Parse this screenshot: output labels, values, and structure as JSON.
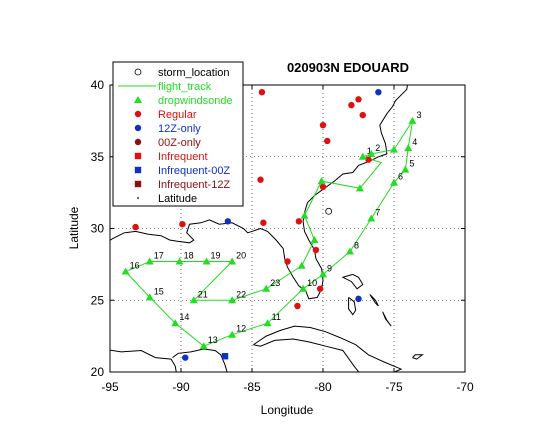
{
  "title": "020903N EDOUARD",
  "colors": {
    "track": "#22dd22",
    "regular": "#e01010",
    "only12z": "#1030c0",
    "only00z": "#8b1010",
    "infrequent": "#e01010",
    "infrequent00z": "#1030c0",
    "infrequent12z": "#8b1010",
    "coast": "#000000",
    "grid": "#000000"
  },
  "chart_data": {
    "type": "scatter",
    "title": "020903N EDOUARD",
    "xlabel": "Longitude",
    "ylabel": "Latitude",
    "xlim": [
      -95,
      -70
    ],
    "ylim": [
      20,
      40
    ],
    "xticks": [
      -95,
      -90,
      -85,
      -80,
      -75,
      -70
    ],
    "yticks": [
      20,
      25,
      30,
      35,
      40
    ],
    "grid": true,
    "legend_position": "top-left",
    "legend": [
      {
        "label": "storm_location",
        "marker": "open-circle",
        "color": "#000000"
      },
      {
        "label": "flight_track",
        "marker": "line",
        "color": "#22dd22"
      },
      {
        "label": "dropwindsonde",
        "marker": "triangle",
        "color": "#22dd22"
      },
      {
        "label": "Regular",
        "marker": "circle",
        "color": "#e01010"
      },
      {
        "label": "12Z-only",
        "marker": "circle",
        "color": "#1030c0"
      },
      {
        "label": "00Z-only",
        "marker": "circle",
        "color": "#8b1010"
      },
      {
        "label": "Infrequent",
        "marker": "square",
        "color": "#e01010"
      },
      {
        "label": "Infrequent-00Z",
        "marker": "square",
        "color": "#1030c0"
      },
      {
        "label": "Infrequent-12Z",
        "marker": "square",
        "color": "#8b1010"
      },
      {
        "label": "Latitude",
        "marker": "dot",
        "color": "#000000"
      }
    ],
    "storm_location": [
      [
        -79.6,
        31.2
      ]
    ],
    "flight_track": [
      [
        -77.2,
        35.0
      ],
      [
        -76.6,
        35.2
      ],
      [
        -75.0,
        35.5
      ],
      [
        -73.7,
        37.5
      ],
      [
        -74.0,
        35.6
      ],
      [
        -74.2,
        34.1
      ],
      [
        -75.0,
        33.2
      ],
      [
        -76.6,
        30.7
      ],
      [
        -78.1,
        28.4
      ],
      [
        -80.0,
        26.8
      ],
      [
        -81.4,
        25.8
      ],
      [
        -83.9,
        23.4
      ],
      [
        -86.4,
        22.6
      ],
      [
        -88.4,
        21.8
      ],
      [
        -90.4,
        23.4
      ],
      [
        -92.2,
        25.2
      ],
      [
        -93.9,
        27.0
      ],
      [
        -92.2,
        27.7
      ],
      [
        -90.1,
        27.7
      ],
      [
        -88.2,
        27.7
      ],
      [
        -86.4,
        27.7
      ],
      [
        -89.1,
        25.0
      ],
      [
        -86.4,
        25.0
      ],
      [
        -84.0,
        25.8
      ],
      [
        -81.5,
        27.4
      ],
      [
        -80.6,
        29.2
      ],
      [
        -81.3,
        30.9
      ],
      [
        -80.1,
        33.3
      ],
      [
        -77.4,
        32.8
      ],
      [
        -75.9,
        34.6
      ],
      [
        -77.2,
        35.0
      ]
    ],
    "dropwindsondes": [
      {
        "lon": -77.2,
        "lat": 35.0,
        "label": "1"
      },
      {
        "lon": -76.6,
        "lat": 35.2,
        "label": "2"
      },
      {
        "lon": -73.7,
        "lat": 37.5,
        "label": "3"
      },
      {
        "lon": -74.0,
        "lat": 35.6,
        "label": "4"
      },
      {
        "lon": -74.2,
        "lat": 34.1,
        "label": "5"
      },
      {
        "lon": -75.0,
        "lat": 33.2,
        "label": "6"
      },
      {
        "lon": -76.6,
        "lat": 30.7,
        "label": "7"
      },
      {
        "lon": -78.1,
        "lat": 28.4,
        "label": "8"
      },
      {
        "lon": -80.0,
        "lat": 26.8,
        "label": "9"
      },
      {
        "lon": -81.4,
        "lat": 25.8,
        "label": "10"
      },
      {
        "lon": -83.9,
        "lat": 23.4,
        "label": "11"
      },
      {
        "lon": -86.4,
        "lat": 22.6,
        "label": "12"
      },
      {
        "lon": -88.4,
        "lat": 21.8,
        "label": "13"
      },
      {
        "lon": -90.4,
        "lat": 23.4,
        "label": "14"
      },
      {
        "lon": -92.2,
        "lat": 25.2,
        "label": "15"
      },
      {
        "lon": -93.9,
        "lat": 27.0,
        "label": "16"
      },
      {
        "lon": -92.2,
        "lat": 27.7,
        "label": "17"
      },
      {
        "lon": -90.1,
        "lat": 27.7,
        "label": "18"
      },
      {
        "lon": -88.2,
        "lat": 27.7,
        "label": "19"
      },
      {
        "lon": -86.4,
        "lat": 27.7,
        "label": "20"
      },
      {
        "lon": -89.1,
        "lat": 25.0,
        "label": "21"
      },
      {
        "lon": -86.4,
        "lat": 25.0,
        "label": "22"
      },
      {
        "lon": -84.0,
        "lat": 25.8,
        "label": "23"
      },
      {
        "lon": -81.5,
        "lat": 27.4,
        "label": ""
      },
      {
        "lon": -80.6,
        "lat": 29.2,
        "label": ""
      },
      {
        "lon": -81.3,
        "lat": 30.9,
        "label": ""
      },
      {
        "lon": -80.1,
        "lat": 33.3,
        "label": ""
      },
      {
        "lon": -77.4,
        "lat": 32.8,
        "label": ""
      },
      {
        "lon": -75.0,
        "lat": 35.5,
        "label": ""
      }
    ],
    "regular_stations": [
      [
        -84.3,
        39.5
      ],
      [
        -77.5,
        39.0
      ],
      [
        -80.0,
        37.2
      ],
      [
        -77.2,
        37.9
      ],
      [
        -79.7,
        36.1
      ],
      [
        -84.4,
        33.4
      ],
      [
        -80.0,
        32.9
      ],
      [
        -76.8,
        34.8
      ],
      [
        -84.2,
        30.4
      ],
      [
        -81.7,
        30.5
      ],
      [
        -89.9,
        30.3
      ],
      [
        -93.2,
        30.1
      ],
      [
        -82.5,
        27.7
      ],
      [
        -80.5,
        28.5
      ],
      [
        -80.2,
        25.8
      ],
      [
        -81.8,
        24.6
      ],
      [
        -78.0,
        38.6
      ]
    ],
    "only12z_stations": [
      [
        -76.1,
        39.5
      ],
      [
        -86.7,
        30.5
      ],
      [
        -77.5,
        25.1
      ],
      [
        -89.7,
        21.0
      ]
    ],
    "only00z_stations": [],
    "infrequent_stations": [],
    "infrequent00z_stations": [
      [
        -86.9,
        21.1
      ]
    ],
    "infrequent12z_stations": [],
    "coastlines": [
      [
        [
          -70.0,
          41.5
        ],
        [
          -71.0,
          41.4
        ],
        [
          -72.8,
          41.1
        ],
        [
          -73.8,
          40.7
        ],
        [
          -74.0,
          40.4
        ],
        [
          -74.1,
          39.7
        ],
        [
          -74.9,
          38.9
        ],
        [
          -75.1,
          38.5
        ],
        [
          -75.5,
          38.0
        ],
        [
          -76.0,
          37.2
        ],
        [
          -75.9,
          36.7
        ],
        [
          -75.6,
          35.9
        ],
        [
          -75.5,
          35.2
        ],
        [
          -76.1,
          35.0
        ],
        [
          -76.7,
          34.7
        ],
        [
          -77.5,
          34.4
        ],
        [
          -77.9,
          33.9
        ],
        [
          -78.6,
          33.8
        ],
        [
          -79.2,
          33.3
        ],
        [
          -79.9,
          32.8
        ],
        [
          -80.6,
          32.3
        ],
        [
          -81.1,
          31.8
        ],
        [
          -81.3,
          31.1
        ],
        [
          -81.4,
          30.5
        ],
        [
          -81.3,
          29.8
        ],
        [
          -81.0,
          29.2
        ],
        [
          -80.6,
          28.5
        ],
        [
          -80.5,
          27.9
        ],
        [
          -80.1,
          27.2
        ],
        [
          -80.0,
          26.4
        ],
        [
          -80.1,
          25.8
        ],
        [
          -80.4,
          25.2
        ],
        [
          -81.0,
          25.1
        ],
        [
          -81.2,
          25.6
        ],
        [
          -81.7,
          26.0
        ],
        [
          -82.1,
          26.6
        ],
        [
          -82.5,
          27.3
        ],
        [
          -82.7,
          27.9
        ],
        [
          -82.8,
          28.6
        ],
        [
          -83.3,
          29.2
        ],
        [
          -83.9,
          29.8
        ],
        [
          -84.4,
          30.0
        ],
        [
          -85.3,
          29.7
        ],
        [
          -85.6,
          30.0
        ],
        [
          -86.4,
          30.4
        ],
        [
          -87.3,
          30.3
        ],
        [
          -88.0,
          30.6
        ],
        [
          -88.6,
          30.4
        ],
        [
          -89.4,
          30.3
        ],
        [
          -89.6,
          29.7
        ],
        [
          -89.1,
          29.2
        ],
        [
          -89.4,
          29.0
        ],
        [
          -90.2,
          29.1
        ],
        [
          -90.8,
          29.2
        ],
        [
          -91.4,
          29.5
        ],
        [
          -92.3,
          29.6
        ],
        [
          -93.2,
          29.8
        ],
        [
          -94.0,
          29.7
        ],
        [
          -94.8,
          29.3
        ],
        [
          -95.4,
          28.9
        ]
      ],
      [
        [
          -95.5,
          21.6
        ],
        [
          -94.2,
          21.4
        ],
        [
          -92.8,
          21.5
        ],
        [
          -91.8,
          21.0
        ],
        [
          -90.7,
          20.9
        ],
        [
          -90.4,
          20.4
        ],
        [
          -90.3,
          19.8
        ]
      ],
      [
        [
          -86.7,
          19.8
        ],
        [
          -86.9,
          20.5
        ],
        [
          -87.2,
          21.2
        ],
        [
          -87.6,
          21.5
        ],
        [
          -88.4,
          21.6
        ],
        [
          -89.3,
          21.4
        ],
        [
          -90.2,
          21.3
        ],
        [
          -90.6,
          21.0
        ]
      ],
      [
        [
          -84.9,
          21.9
        ],
        [
          -84.0,
          22.5
        ],
        [
          -83.0,
          22.9
        ],
        [
          -82.0,
          23.2
        ],
        [
          -80.9,
          23.1
        ],
        [
          -79.8,
          22.8
        ],
        [
          -78.8,
          22.4
        ],
        [
          -77.7,
          21.9
        ],
        [
          -76.8,
          21.2
        ],
        [
          -75.7,
          20.7
        ],
        [
          -74.5,
          20.2
        ],
        [
          -75.2,
          19.9
        ],
        [
          -76.5,
          19.9
        ],
        [
          -77.4,
          19.9
        ],
        [
          -77.8,
          20.4
        ],
        [
          -78.6,
          21.5
        ],
        [
          -79.8,
          21.8
        ],
        [
          -81.0,
          22.1
        ],
        [
          -82.1,
          22.3
        ],
        [
          -83.4,
          22.2
        ],
        [
          -84.4,
          21.8
        ],
        [
          -84.9,
          21.9
        ]
      ],
      [
        [
          -77.9,
          26.8
        ],
        [
          -77.5,
          26.6
        ],
        [
          -77.2,
          26.1
        ],
        [
          -77.6,
          25.8
        ],
        [
          -78.0,
          26.3
        ],
        [
          -78.6,
          26.6
        ],
        [
          -77.9,
          26.8
        ]
      ],
      [
        [
          -78.2,
          25.2
        ],
        [
          -77.8,
          24.9
        ],
        [
          -77.7,
          24.3
        ],
        [
          -77.9,
          24.0
        ],
        [
          -78.2,
          24.4
        ],
        [
          -78.2,
          25.2
        ]
      ],
      [
        [
          -76.7,
          25.4
        ],
        [
          -76.3,
          25.0
        ],
        [
          -76.1,
          24.6
        ],
        [
          -76.3,
          24.8
        ],
        [
          -76.7,
          25.4
        ]
      ],
      [
        [
          -75.8,
          24.2
        ],
        [
          -75.5,
          23.6
        ],
        [
          -75.2,
          23.2
        ],
        [
          -75.6,
          23.7
        ],
        [
          -75.8,
          24.2
        ]
      ],
      [
        [
          -73.7,
          21.0
        ],
        [
          -73.4,
          20.9
        ],
        [
          -73.0,
          21.2
        ],
        [
          -73.5,
          21.2
        ],
        [
          -73.7,
          21.0
        ]
      ],
      [
        [
          -64.9,
          32.4
        ],
        [
          -64.7,
          32.2
        ],
        [
          -64.9,
          32.3
        ]
      ]
    ]
  }
}
